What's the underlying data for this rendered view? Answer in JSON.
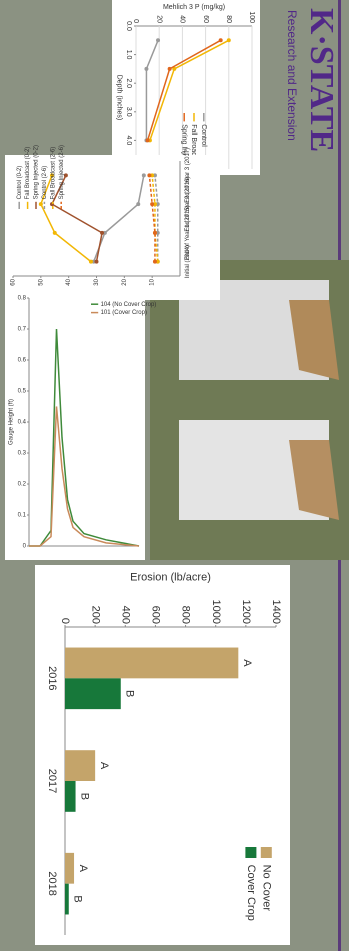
{
  "logo": {
    "name": "K·STATE",
    "subtitle": "Research and Extension"
  },
  "chart_data": [
    {
      "type": "line",
      "y_label": "Mehlich 3 P (mg/kg)",
      "x_label": "Depth (inches)",
      "x": [
        0.5,
        1.5,
        4
      ],
      "xlim": [
        0,
        5
      ],
      "xticks": [
        {
          "value": 0,
          "label": "0.0"
        },
        {
          "value": 1,
          "label": "1.0"
        },
        {
          "value": 2,
          "label": "2.0"
        },
        {
          "value": 3,
          "label": "3.0"
        },
        {
          "value": 4,
          "label": "4.0"
        },
        {
          "value": 5,
          "label": "5.0"
        }
      ],
      "ylim": [
        0,
        100
      ],
      "yticks": [
        0,
        20,
        40,
        60,
        80,
        100
      ],
      "grid": true,
      "markers": true,
      "legend": "right",
      "series": [
        {
          "name": "Control",
          "color": "#9a9a9a",
          "values": [
            19,
            9,
            9
          ]
        },
        {
          "name": "Fall Broadcast",
          "color": "#f2b705",
          "values": [
            80,
            33,
            12
          ]
        },
        {
          "name": "Spring Injected",
          "color": "#e0661c",
          "values": [
            73,
            29,
            10
          ]
        }
      ]
    },
    {
      "type": "line",
      "y_label": "Soil Test Phosphorus (ppm)",
      "categories": [
        "Initial (2014)",
        "End of Year 1 (2015)",
        "End of Year 2 (2016)",
        "End of Year 3 (2017)"
      ],
      "ylim": [
        0,
        60
      ],
      "yticks": [
        10,
        20,
        30,
        40,
        50,
        60
      ],
      "grid": false,
      "markers": true,
      "legend": "top-right",
      "series": [
        {
          "name": "Control (0-2)",
          "color": "#9a9a9a",
          "values": [
            31,
            27,
            15,
            13
          ]
        },
        {
          "name": "Fall Broadcast (0-2)",
          "color": "#f2b705",
          "values": [
            32,
            45,
            50,
            46
          ]
        },
        {
          "name": "Spring Injected (0-2)",
          "color": "#a0522d",
          "values": [
            30,
            28,
            46,
            41
          ]
        },
        {
          "name": "Control (2-6)",
          "color": "#9a9a9a",
          "dash": true,
          "values": [
            8,
            8,
            8,
            9
          ]
        },
        {
          "name": "Fall Broadcast (2-6)",
          "color": "#f2b705",
          "dash": true,
          "values": [
            8,
            9,
            9,
            10
          ]
        },
        {
          "name": "Spring Injected (2-6)",
          "color": "#e0661c",
          "dash": true,
          "values": [
            9,
            9,
            10,
            11
          ]
        }
      ]
    },
    {
      "type": "line",
      "y_label": "Gauge Height (ft)",
      "x": [
        0,
        2,
        4,
        5,
        6,
        7,
        8,
        10,
        14,
        20
      ],
      "xlim": [
        0,
        20
      ],
      "ylim": [
        0,
        0.8
      ],
      "yticks": [
        0,
        0.1,
        0.2,
        0.3,
        0.4,
        0.5,
        0.6,
        0.7,
        0.8
      ],
      "grid": false,
      "markers": false,
      "legend": "top-right",
      "series": [
        {
          "name": "104 (No Cover Crop)",
          "color": "#3f8a3a",
          "values": [
            0,
            0,
            0.05,
            0.7,
            0.35,
            0.15,
            0.08,
            0.04,
            0.02,
            0
          ]
        },
        {
          "name": "101 (Cover Crop)",
          "color": "#c98a5a",
          "values": [
            0,
            0,
            0.03,
            0.45,
            0.25,
            0.12,
            0.06,
            0.03,
            0.01,
            0
          ]
        }
      ]
    },
    {
      "type": "bar",
      "y_label": "Erosion (lb/acre)",
      "categories": [
        "2016",
        "2017",
        "2018"
      ],
      "ylim": [
        0,
        1400
      ],
      "yticks": [
        0,
        200,
        400,
        600,
        800,
        1000,
        1200,
        1400
      ],
      "grid": false,
      "legend": "top-right",
      "series": [
        {
          "name": "No Cover",
          "color": "#c4a46a",
          "values": [
            1150,
            200,
            60
          ],
          "letters": [
            "A",
            "A",
            "A"
          ]
        },
        {
          "name": "Cover Crop",
          "color": "#17783a",
          "values": [
            370,
            70,
            25
          ],
          "letters": [
            "B",
            "B",
            "B"
          ]
        }
      ]
    }
  ]
}
